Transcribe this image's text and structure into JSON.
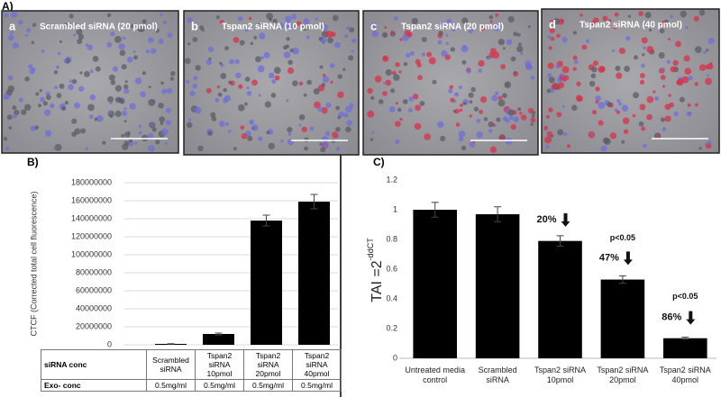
{
  "panel_labels": {
    "a_panel": "A)",
    "b_panel": "B)",
    "c_panel": "C)"
  },
  "images": [
    {
      "letter": "a",
      "caption": "Scrambled siRNA (20 pmol)"
    },
    {
      "letter": "b",
      "caption": "Tspan2 siRNA (10 pmol)"
    },
    {
      "letter": "c",
      "caption": "Tspan2 siRNA (20 pmol)"
    },
    {
      "letter": "d",
      "caption": "Tspan2 siRNA (40 pmol)"
    }
  ],
  "chart_data": [
    {
      "type": "bar",
      "y_label": "CTCF (Corrected total cell fluorescence)",
      "categories": [
        "Scrambled siRNA",
        "Tspan2 siRNA 10pmol",
        "Tspan2 siRNA 20pmol",
        "Tspan2 siRNA 40pmol"
      ],
      "values": [
        1000000,
        12000000,
        138000000,
        159000000
      ],
      "errors": [
        200000,
        1000000,
        6000000,
        8000000
      ],
      "color": "#000000",
      "ylim": [
        0,
        180000000
      ],
      "yticks": [
        0,
        20000000,
        40000000,
        60000000,
        80000000,
        100000000,
        120000000,
        140000000,
        160000000,
        180000000
      ],
      "grid": true,
      "table": {
        "row_labels": [
          "siRNA conc",
          "Exo- conc"
        ],
        "exo_conc": [
          "0.5mg/ml",
          "0.5mg/ml",
          "0.5mg/ml",
          "0.5mg/ml"
        ]
      }
    },
    {
      "type": "bar",
      "y_label": "TAI =2",
      "y_label_sup": "-ddCT",
      "categories": [
        "Untreated media control",
        "Scrambled siRNA",
        "Tspan2 siRNA 10pmol",
        "Tspan2 siRNA 20pmol",
        "Tspan2 siRNA 40pmol"
      ],
      "values": [
        1.0,
        0.97,
        0.79,
        0.53,
        0.135
      ],
      "errors": [
        0.05,
        0.05,
        0.035,
        0.025,
        0.007
      ],
      "color": "#000000",
      "ylim": [
        0,
        1.2
      ],
      "yticks": [
        0,
        0.2,
        0.4,
        0.6,
        0.8,
        1,
        1.2
      ],
      "grid": false,
      "annotations": [
        "20%",
        "p<0.05",
        "47%",
        "p<0.05",
        "86%"
      ]
    }
  ]
}
